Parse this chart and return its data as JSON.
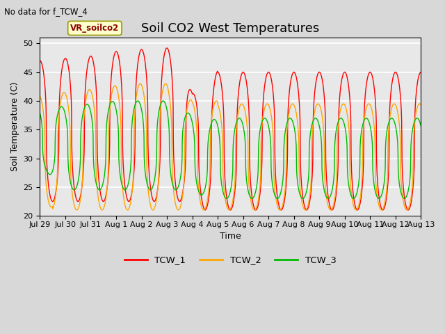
{
  "title": "Soil CO2 West Temperatures",
  "xlabel": "Time",
  "ylabel": "Soil Temperature (C)",
  "no_data_label": "No data for f_TCW_4",
  "vr_label": "VR_soilco2",
  "ylim": [
    20,
    51
  ],
  "yticks": [
    20,
    25,
    30,
    35,
    40,
    45,
    50
  ],
  "xtick_labels": [
    "Jul 29",
    "Jul 30",
    "Jul 31",
    "Aug 1",
    "Aug 2",
    "Aug 3",
    "Aug 4",
    "Aug 5",
    "Aug 6",
    "Aug 7",
    "Aug 8",
    "Aug 9",
    "Aug 10",
    "Aug 11",
    "Aug 12",
    "Aug 13"
  ],
  "legend_entries": [
    "TCW_1",
    "TCW_2",
    "TCW_3"
  ],
  "line_colors": [
    "#ff0000",
    "#ffa500",
    "#00bb00"
  ],
  "background_color": "#e8e8e8",
  "grid_color": "#ffffff",
  "title_fontsize": 13,
  "label_fontsize": 9,
  "tick_fontsize": 8,
  "fig_width": 6.4,
  "fig_height": 4.8,
  "dpi": 100
}
